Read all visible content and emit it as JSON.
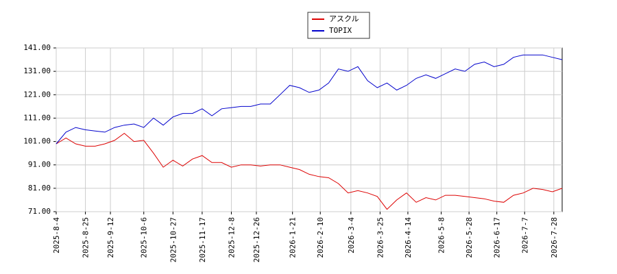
{
  "chart_data": {
    "type": "line",
    "x": [
      "2025-8-4",
      "2025-8-11",
      "2025-8-18",
      "2025-8-25",
      "2025-9-1",
      "2025-9-8",
      "2025-9-15",
      "2025-9-22",
      "2025-9-29",
      "2025-10-6",
      "2025-10-13",
      "2025-10-20",
      "2025-10-27",
      "2025-11-3",
      "2025-11-10",
      "2025-11-17",
      "2025-11-24",
      "2025-12-1",
      "2025-12-8",
      "2025-12-15",
      "2025-12-22",
      "2025-12-29",
      "2026-1-5",
      "2026-1-12",
      "2026-1-19",
      "2026-1-26",
      "2026-2-2",
      "2026-2-9",
      "2026-2-16",
      "2026-2-23",
      "2026-3-2",
      "2026-3-9",
      "2026-3-16",
      "2026-3-23",
      "2026-3-30",
      "2026-4-6",
      "2026-4-13",
      "2026-4-20",
      "2026-4-27",
      "2026-5-4",
      "2026-5-11",
      "2026-5-18",
      "2026-5-25",
      "2026-6-1",
      "2026-6-8",
      "2026-6-15",
      "2026-6-22",
      "2026-6-29",
      "2026-7-6",
      "2026-7-13",
      "2026-7-20",
      "2026-7-27",
      "2026-8-3"
    ],
    "series": [
      {
        "name": "アスクル",
        "color": "#dd0000",
        "values": [
          100,
          102.5,
          100,
          99,
          99,
          100,
          101.5,
          104.5,
          101,
          101.5,
          96,
          90,
          93,
          90.5,
          93.5,
          95,
          92,
          92,
          90,
          91,
          91,
          90.5,
          91,
          91,
          90,
          89,
          87,
          86,
          85.5,
          83,
          79,
          80,
          79,
          77.5,
          72,
          76,
          79,
          75,
          77,
          76,
          78,
          78,
          77.5,
          77,
          76.5,
          75.5,
          75,
          78,
          79,
          81,
          80.5,
          79.5,
          81
        ]
      },
      {
        "name": "TOPIX",
        "color": "#0000cc",
        "values": [
          100,
          105,
          107,
          106,
          105.5,
          105,
          107,
          108,
          108.5,
          107,
          111,
          108,
          111.5,
          113,
          113,
          115,
          112,
          115,
          115.5,
          116,
          116,
          117,
          117,
          121,
          125,
          124,
          122,
          123,
          126,
          132,
          131,
          133,
          127,
          124,
          126,
          123,
          125,
          128,
          129.5,
          128,
          130,
          132,
          131,
          134,
          135,
          133,
          134,
          137,
          138,
          138,
          138,
          137,
          136
        ]
      }
    ],
    "xticks": [
      "2025-8-4",
      "2025-8-25",
      "2025-9-12",
      "2025-10-6",
      "2025-10-27",
      "2025-11-17",
      "2025-12-8",
      "2025-12-26",
      "2026-1-21",
      "2026-2-10",
      "2026-3-4",
      "2026-3-25",
      "2026-4-14",
      "2026-5-8",
      "2026-5-28",
      "2026-6-17",
      "2026-7-7",
      "2026-7-28"
    ],
    "ylim": [
      71,
      141
    ],
    "yticks": [
      {
        "value": 71,
        "label": "71.00"
      },
      {
        "value": 81,
        "label": "81.00"
      },
      {
        "value": 91,
        "label": "91.00"
      },
      {
        "value": 101,
        "label": "101.00"
      },
      {
        "value": 111,
        "label": "111.00"
      },
      {
        "value": 121,
        "label": "121.00"
      },
      {
        "value": 131,
        "label": "131.00"
      },
      {
        "value": 141,
        "label": "141.00"
      }
    ],
    "grid": true
  }
}
